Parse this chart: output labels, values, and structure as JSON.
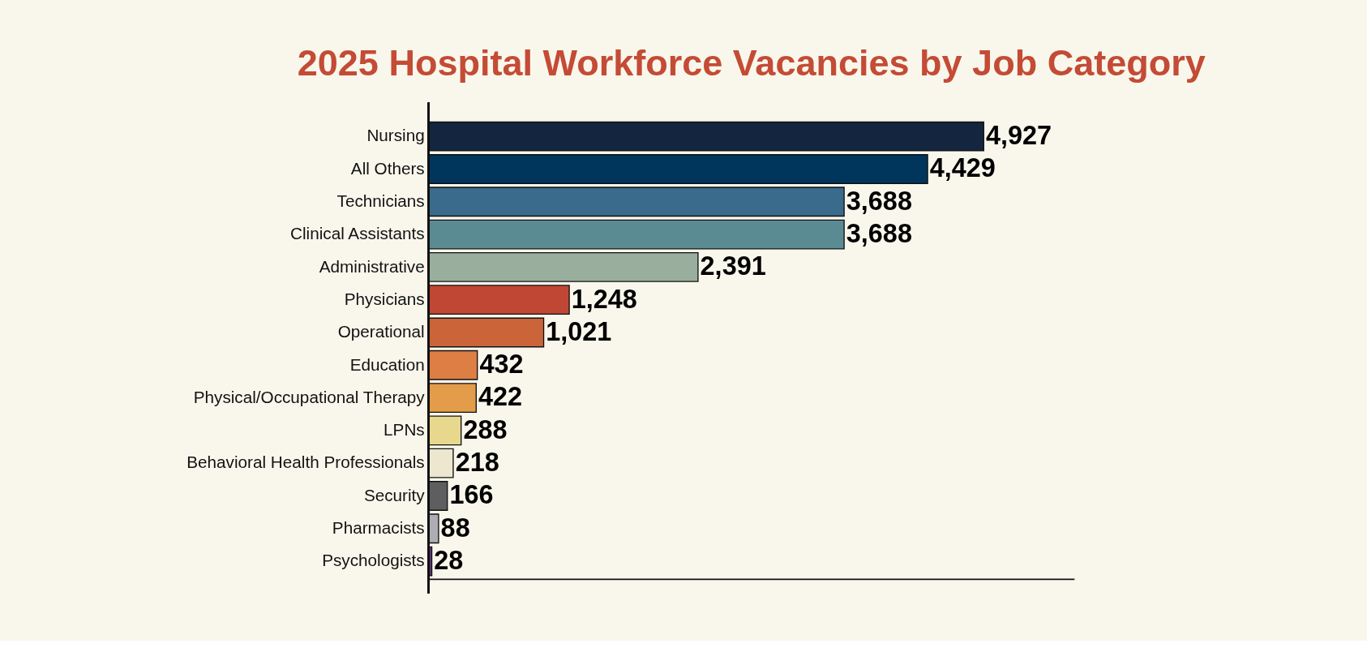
{
  "chart_data": {
    "type": "bar",
    "orientation": "horizontal",
    "title": "2025 Hospital Workforce Vacancies by Job Category",
    "categories": [
      "Nursing",
      "All Others",
      "Technicians",
      "Clinical Assistants",
      "Administrative",
      "Physicians",
      "Operational",
      "Education",
      "Physical/Occupational Therapy",
      "LPNs",
      "Behavioral Health Professionals",
      "Security",
      "Pharmacists",
      "Psychologists"
    ],
    "values": [
      4927,
      4429,
      3688,
      3688,
      2391,
      1248,
      1021,
      432,
      422,
      288,
      218,
      166,
      88,
      28
    ],
    "colors": [
      "#14263f",
      "#01365c",
      "#3a6b8c",
      "#5a8b92",
      "#9aae9e",
      "#bf4733",
      "#cb6438",
      "#dd7e44",
      "#e39c4a",
      "#e8d88d",
      "#ede7cf",
      "#5e5e60",
      "#aeadb5",
      "#5c3a7a"
    ],
    "value_labels": [
      "4,927",
      "4,429",
      "3,688",
      "3,688",
      "2,391",
      "1,248",
      "1,021",
      "432",
      "422",
      "288",
      "218",
      "166",
      "88",
      "28"
    ],
    "xlim": [
      0,
      5730
    ],
    "tick_labels": "y"
  }
}
